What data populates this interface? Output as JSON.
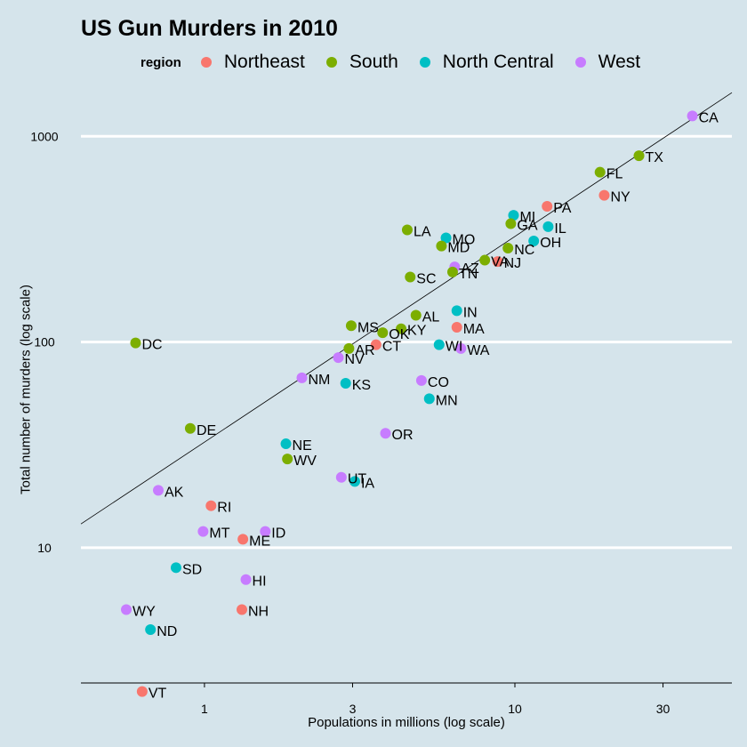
{
  "chart_data": {
    "type": "scatter",
    "title": "US Gun Murders in 2010",
    "xlabel": "Populations in millions (log scale)",
    "ylabel": "Total number of murders (log scale)",
    "x_scale": "log10",
    "y_scale": "log10",
    "xlim": [
      0.4,
      50
    ],
    "ylim": [
      2.2,
      1700
    ],
    "x_ticks": [
      1,
      3,
      10,
      30
    ],
    "y_ticks": [
      10,
      100,
      1000
    ],
    "grid": "horizontal major lines",
    "legend": {
      "title": "region",
      "placement": "top",
      "entries": [
        {
          "name": "Northeast",
          "color": "#F8766D"
        },
        {
          "name": "South",
          "color": "#7CAE00"
        },
        {
          "name": "North Central",
          "color": "#00BFC4"
        },
        {
          "name": "West",
          "color": "#C77CFF"
        }
      ]
    },
    "reference_line": {
      "slope": 1,
      "intercept_log10": 1.5133,
      "label": ""
    },
    "points": [
      {
        "label": "CA",
        "region": "West",
        "x": 37.3,
        "y": 1257
      },
      {
        "label": "TX",
        "region": "South",
        "x": 25.1,
        "y": 805
      },
      {
        "label": "FL",
        "region": "South",
        "x": 18.8,
        "y": 669
      },
      {
        "label": "NY",
        "region": "Northeast",
        "x": 19.4,
        "y": 517
      },
      {
        "label": "PA",
        "region": "Northeast",
        "x": 12.7,
        "y": 457
      },
      {
        "label": "MI",
        "region": "North Central",
        "x": 9.9,
        "y": 413
      },
      {
        "label": "GA",
        "region": "South",
        "x": 9.7,
        "y": 376
      },
      {
        "label": "IL",
        "region": "North Central",
        "x": 12.8,
        "y": 364
      },
      {
        "label": "LA",
        "region": "South",
        "x": 4.5,
        "y": 351
      },
      {
        "label": "MO",
        "region": "North Central",
        "x": 6.0,
        "y": 321
      },
      {
        "label": "OH",
        "region": "North Central",
        "x": 11.5,
        "y": 310
      },
      {
        "label": "MD",
        "region": "South",
        "x": 5.8,
        "y": 293
      },
      {
        "label": "NC",
        "region": "South",
        "x": 9.5,
        "y": 286
      },
      {
        "label": "VA",
        "region": "South",
        "x": 8.0,
        "y": 250
      },
      {
        "label": "NJ",
        "region": "Northeast",
        "x": 8.8,
        "y": 246
      },
      {
        "label": "AZ",
        "region": "West",
        "x": 6.4,
        "y": 232
      },
      {
        "label": "TN",
        "region": "South",
        "x": 6.3,
        "y": 219
      },
      {
        "label": "SC",
        "region": "South",
        "x": 4.6,
        "y": 207
      },
      {
        "label": "IN",
        "region": "North Central",
        "x": 6.5,
        "y": 142
      },
      {
        "label": "MA",
        "region": "Northeast",
        "x": 6.5,
        "y": 118
      },
      {
        "label": "AL",
        "region": "South",
        "x": 4.8,
        "y": 135
      },
      {
        "label": "MS",
        "region": "South",
        "x": 2.97,
        "y": 120
      },
      {
        "label": "OK",
        "region": "South",
        "x": 3.75,
        "y": 111
      },
      {
        "label": "KY",
        "region": "South",
        "x": 4.3,
        "y": 116
      },
      {
        "label": "DC",
        "region": "South",
        "x": 0.6,
        "y": 99
      },
      {
        "label": "CT",
        "region": "Northeast",
        "x": 3.57,
        "y": 97
      },
      {
        "label": "WI",
        "region": "North Central",
        "x": 5.7,
        "y": 97
      },
      {
        "label": "AR",
        "region": "South",
        "x": 2.92,
        "y": 93
      },
      {
        "label": "WA",
        "region": "West",
        "x": 6.7,
        "y": 93
      },
      {
        "label": "NV",
        "region": "West",
        "x": 2.7,
        "y": 84
      },
      {
        "label": "NM",
        "region": "West",
        "x": 2.06,
        "y": 67
      },
      {
        "label": "CO",
        "region": "West",
        "x": 5.0,
        "y": 65
      },
      {
        "label": "KS",
        "region": "North Central",
        "x": 2.85,
        "y": 63
      },
      {
        "label": "MN",
        "region": "North Central",
        "x": 5.3,
        "y": 53
      },
      {
        "label": "DE",
        "region": "South",
        "x": 0.9,
        "y": 38
      },
      {
        "label": "OR",
        "region": "West",
        "x": 3.83,
        "y": 36
      },
      {
        "label": "NE",
        "region": "North Central",
        "x": 1.83,
        "y": 32
      },
      {
        "label": "WV",
        "region": "South",
        "x": 1.85,
        "y": 27
      },
      {
        "label": "UT",
        "region": "West",
        "x": 2.76,
        "y": 22
      },
      {
        "label": "IA",
        "region": "North Central",
        "x": 3.05,
        "y": 21
      },
      {
        "label": "AK",
        "region": "West",
        "x": 0.71,
        "y": 19
      },
      {
        "label": "RI",
        "region": "Northeast",
        "x": 1.05,
        "y": 16
      },
      {
        "label": "MT",
        "region": "West",
        "x": 0.99,
        "y": 12
      },
      {
        "label": "ID",
        "region": "West",
        "x": 1.57,
        "y": 12
      },
      {
        "label": "ME",
        "region": "Northeast",
        "x": 1.33,
        "y": 11
      },
      {
        "label": "SD",
        "region": "North Central",
        "x": 0.81,
        "y": 8
      },
      {
        "label": "HI",
        "region": "West",
        "x": 1.36,
        "y": 7
      },
      {
        "label": "NH",
        "region": "Northeast",
        "x": 1.32,
        "y": 5
      },
      {
        "label": "WY",
        "region": "West",
        "x": 0.56,
        "y": 5
      },
      {
        "label": "ND",
        "region": "North Central",
        "x": 0.67,
        "y": 4
      },
      {
        "label": "VT",
        "region": "Northeast",
        "x": 0.63,
        "y": 2
      }
    ]
  }
}
